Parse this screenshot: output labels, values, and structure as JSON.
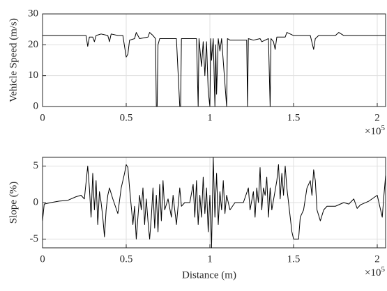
{
  "chart_data": [
    {
      "type": "line",
      "ylabel": "Vehicle Speed (m/s)",
      "xlim": [
        0,
        205000
      ],
      "ylim": [
        0,
        30
      ],
      "xticks": [
        0,
        {
          "value": 50000,
          "label": "0.5"
        },
        {
          "value": 100000,
          "label": "1"
        },
        {
          "value": 150000,
          "label": "1.5"
        },
        {
          "value": 200000,
          "label": "2"
        }
      ],
      "yticks": [
        0,
        10,
        20,
        30
      ],
      "x_offset_base": "×10",
      "x_offset_exponent": "5",
      "grid": true,
      "x": [
        0,
        26000,
        27000,
        28000,
        30000,
        31000,
        32000,
        35000,
        39000,
        40000,
        41000,
        45000,
        48000,
        50000,
        51000,
        52000,
        55000,
        56000,
        58000,
        63000,
        64000,
        66000,
        67500,
        68000,
        68500,
        69000,
        70000,
        80000,
        82000,
        82500,
        83000,
        92000,
        93000,
        93500,
        95000,
        96000,
        97000,
        98000,
        99000,
        100000,
        100500,
        101000,
        102000,
        103000,
        103500,
        104000,
        105000,
        106000,
        107000,
        110000,
        110500,
        112000,
        122000,
        122500,
        123000,
        126000,
        130000,
        131000,
        135000,
        136000,
        136500,
        138000,
        139000,
        140000,
        145000,
        146000,
        150000,
        155000,
        160000,
        162000,
        163000,
        165000,
        175000,
        177000,
        180000,
        205000
      ],
      "series": [
        {
          "color": "#000000",
          "values": [
            23,
            23,
            19.5,
            22.5,
            22.5,
            21,
            23,
            23.5,
            23,
            21,
            23.5,
            23,
            23,
            16,
            17,
            21.5,
            22,
            24,
            22,
            22.5,
            24,
            23,
            22,
            0,
            0,
            20,
            22,
            22,
            0,
            0,
            22,
            22,
            0,
            22,
            13,
            21,
            10,
            21,
            5,
            0,
            22,
            15,
            22,
            0,
            20,
            4,
            22,
            18,
            22,
            0,
            22,
            21.5,
            21.5,
            0,
            22,
            21.5,
            22,
            21,
            22,
            0,
            22,
            21,
            18.5,
            22.5,
            22.5,
            24,
            23,
            23,
            23,
            18.5,
            22,
            23,
            23,
            24,
            23,
            23
          ]
        }
      ]
    },
    {
      "type": "line",
      "ylabel": "Slope (%)",
      "xlabel": "Distance (m)",
      "xlim": [
        0,
        205000
      ],
      "ylim": [
        -6.2,
        6.2
      ],
      "xticks": [
        0,
        {
          "value": 50000,
          "label": "0.5"
        },
        {
          "value": 100000,
          "label": "1"
        },
        {
          "value": 150000,
          "label": "1.5"
        },
        {
          "value": 200000,
          "label": "2"
        }
      ],
      "yticks": [
        -5,
        0,
        5
      ],
      "x_offset_base": "×10",
      "x_offset_exponent": "5",
      "grid": true,
      "x": [
        0,
        1000,
        5000,
        10000,
        15000,
        20000,
        23000,
        25000,
        27000,
        28000,
        29000,
        30000,
        31000,
        32000,
        33000,
        34000,
        35000,
        36000,
        37000,
        38000,
        39000,
        40000,
        42000,
        45000,
        47000,
        49000,
        50000,
        51000,
        52000,
        53000,
        54000,
        55000,
        56000,
        57000,
        58000,
        59000,
        60000,
        61000,
        62000,
        63000,
        64000,
        65000,
        66000,
        67000,
        68000,
        69000,
        70000,
        71000,
        72000,
        73000,
        75000,
        77000,
        78000,
        80000,
        82000,
        83000,
        85000,
        88000,
        90000,
        91000,
        92000,
        93000,
        94000,
        95000,
        96000,
        97000,
        98000,
        99000,
        100000,
        101000,
        102000,
        103000,
        104000,
        105000,
        106000,
        107000,
        108000,
        109000,
        110000,
        112000,
        115000,
        120000,
        123000,
        124000,
        126000,
        127000,
        128000,
        129000,
        130000,
        131000,
        132000,
        133000,
        134000,
        135000,
        136000,
        137000,
        140000,
        141000,
        142000,
        143000,
        144000,
        145000,
        146000,
        148000,
        149000,
        150000,
        153000,
        154000,
        156000,
        158000,
        160000,
        161000,
        162000,
        163000,
        164000,
        166000,
        168000,
        170000,
        175000,
        180000,
        183000,
        186000,
        188000,
        190000,
        195000,
        200000,
        201000,
        202000,
        203000,
        204000,
        205000
      ],
      "series": [
        {
          "color": "#000000",
          "values": [
            -2.5,
            -0.2,
            0,
            0.2,
            0.3,
            0.8,
            1,
            0.5,
            5,
            2,
            -2,
            4,
            -1,
            3,
            -3,
            1.5,
            0,
            -2,
            -4.7,
            -1,
            1,
            2,
            0.5,
            -1.5,
            2,
            4,
            5.2,
            4.8,
            2,
            -0.5,
            -3,
            -0.5,
            -5,
            -2,
            1,
            -1,
            2,
            -3,
            0.5,
            -2.5,
            -5,
            -2,
            2,
            -3.5,
            1,
            -4,
            2.5,
            -2.5,
            3,
            -1,
            0.5,
            -2,
            1,
            -3,
            2,
            -0.5,
            0,
            0,
            2.5,
            -2,
            3,
            -3,
            1,
            -2,
            3.5,
            -1.5,
            2,
            -4,
            1,
            -6.2,
            6.2,
            -2,
            4,
            -3,
            1.5,
            -1,
            3,
            -1.5,
            1,
            -1,
            0,
            0,
            2,
            -1,
            1.5,
            -2,
            2,
            0,
            4.8,
            -1,
            2,
            1,
            3.5,
            -2,
            2,
            -1,
            3,
            5.2,
            0.5,
            4,
            1,
            5,
            2,
            -2,
            -4,
            -5,
            -5,
            -2,
            -1,
            2,
            3,
            1,
            4.5,
            3,
            -1,
            -2.5,
            -1,
            -0.5,
            -0.5,
            0,
            -0.2,
            0.5,
            -0.8,
            -0.3,
            0.2,
            1,
            0,
            -1,
            -2,
            1,
            3.7
          ]
        }
      ]
    }
  ]
}
